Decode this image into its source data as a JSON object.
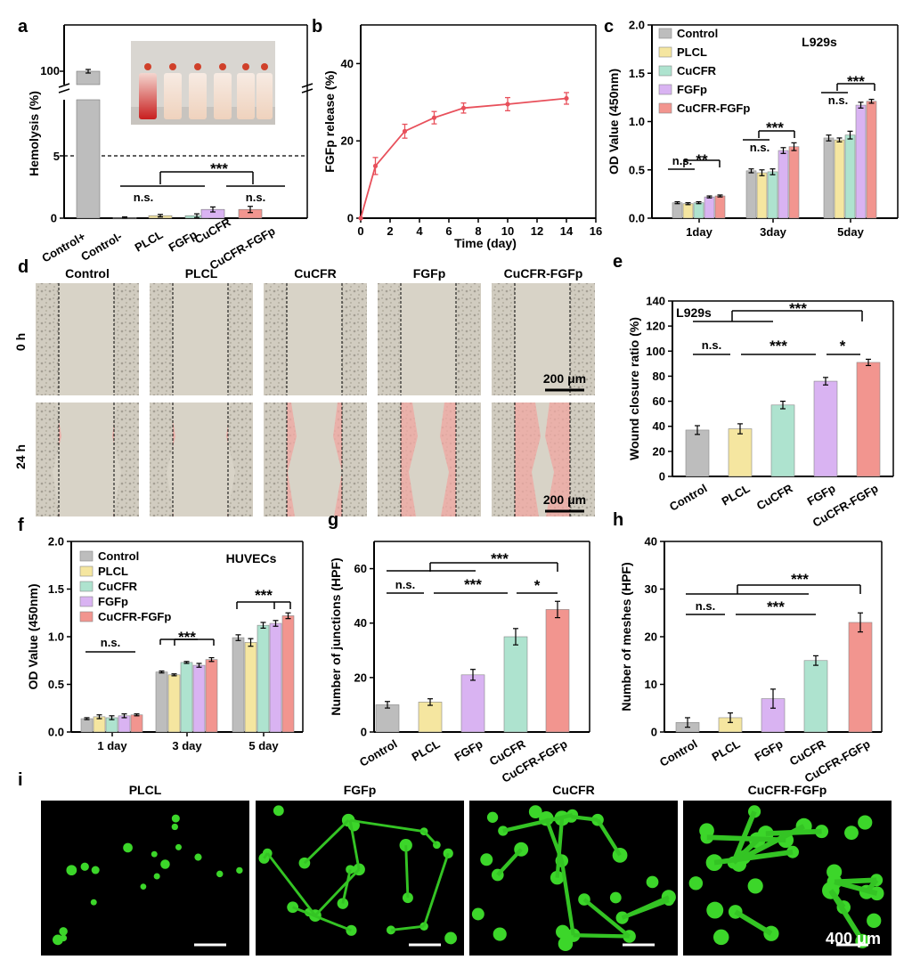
{
  "palette": {
    "Control": "#bdbdbd",
    "PLCL": "#f5e6a0",
    "CuCFR": "#aee3cf",
    "FGFp": "#d9b3f2",
    "CuCFR-FGFp": "#f2958f",
    "Control+": "#bdbdbd",
    "Control-": "#222222"
  },
  "panels": {
    "a": {
      "label": "a",
      "ylabel": "Hemolysis (%)",
      "threshold": 5,
      "threshold_label": "5",
      "top_tick": "100",
      "ns1": "n.s.",
      "ns2": "n.s.",
      "sig": "***"
    },
    "b": {
      "label": "b"
    },
    "c": {
      "label": "c",
      "title": "L929s",
      "sig1": "**",
      "sig2": "***",
      "sig3": "***",
      "ns": "n.s."
    },
    "d": {
      "label": "d",
      "cols": [
        "Control",
        "PLCL",
        "CuCFR",
        "FGFp",
        "CuCFR-FGFp"
      ],
      "rows": [
        "0 h",
        "24 h"
      ],
      "scale": "200 μm"
    },
    "e": {
      "label": "e",
      "title": "L929s",
      "sig_top": "***",
      "ns": "n.s.",
      "sig_mid": "***",
      "sig_right": "*"
    },
    "f": {
      "label": "f",
      "title": "HUVECs",
      "ns": "n.s.",
      "sig1": "***",
      "sig2": "***"
    },
    "g": {
      "label": "g",
      "sig_top": "***",
      "ns": "n.s.",
      "sig_mid": "***",
      "sig_right": "*"
    },
    "h": {
      "label": "h",
      "sig_top": "***",
      "ns": "n.s.",
      "sig_mid": "***"
    },
    "i": {
      "label": "i",
      "cols": [
        "PLCL",
        "FGFp",
        "CuCFR",
        "CuCFR-FGFp"
      ],
      "scale": "400 μm"
    }
  },
  "chart_data": [
    {
      "id": "a",
      "type": "bar",
      "ylabel": "Hemolysis (%)",
      "categories": [
        "Control+",
        "Control-",
        "PLCL",
        "FGFp",
        "CuCFR",
        "CuCFR-FGFp"
      ],
      "values": [
        100,
        0.05,
        0.2,
        0.2,
        0.7,
        0.7
      ],
      "errors": [
        1,
        0.05,
        0.1,
        0.15,
        0.2,
        0.25
      ],
      "yticks": [
        "0",
        "2",
        "5",
        "100"
      ],
      "axis_break": true
    },
    {
      "id": "b",
      "type": "line",
      "xlabel": "Time (day)",
      "ylabel": "FGFp  release (%)",
      "x": [
        0,
        1,
        3,
        5,
        7,
        10,
        14
      ],
      "y": [
        0,
        13.5,
        22.5,
        26,
        28.5,
        29.5,
        31
      ],
      "errors": [
        0,
        2.2,
        1.8,
        1.6,
        1.3,
        1.7,
        1.5
      ],
      "xlim": [
        0,
        16
      ],
      "ylim": [
        0,
        50
      ],
      "xticks": [
        "0",
        "2",
        "4",
        "6",
        "8",
        "10",
        "12",
        "14",
        "16"
      ],
      "yticks": [
        "0",
        "20",
        "40"
      ]
    },
    {
      "id": "c",
      "type": "bar",
      "ylabel": "OD Value (450nm)",
      "ylim": [
        0,
        2.0
      ],
      "yticks": [
        "0.0",
        "0.5",
        "1.0",
        "1.5",
        "2.0"
      ],
      "categories": [
        "1day",
        "3day",
        "5day"
      ],
      "series": [
        {
          "name": "Control",
          "values": [
            0.16,
            0.49,
            0.83
          ],
          "errors": [
            0.01,
            0.02,
            0.03
          ]
        },
        {
          "name": "PLCL",
          "values": [
            0.15,
            0.47,
            0.81
          ],
          "errors": [
            0.01,
            0.03,
            0.02
          ]
        },
        {
          "name": "CuCFR",
          "values": [
            0.16,
            0.48,
            0.86
          ],
          "errors": [
            0.01,
            0.03,
            0.04
          ]
        },
        {
          "name": "FGFp",
          "values": [
            0.22,
            0.7,
            1.17
          ],
          "errors": [
            0.01,
            0.03,
            0.03
          ]
        },
        {
          "name": "CuCFR-FGFp",
          "values": [
            0.23,
            0.74,
            1.21
          ],
          "errors": [
            0.01,
            0.04,
            0.02
          ]
        }
      ]
    },
    {
      "id": "e",
      "type": "bar",
      "ylabel": "Wound closure ratio (%)",
      "ylim": [
        0,
        140
      ],
      "yticks": [
        "0",
        "20",
        "40",
        "60",
        "80",
        "100",
        "120",
        "140"
      ],
      "categories": [
        "Control",
        "PLCL",
        "CuCFR",
        "FGFp",
        "CuCFR-FGFp"
      ],
      "values": [
        37,
        38,
        57,
        76,
        91
      ],
      "errors": [
        3.5,
        4,
        3,
        3,
        2.5
      ]
    },
    {
      "id": "f",
      "type": "bar",
      "ylabel": "OD Value (450nm)",
      "ylim": [
        0,
        2.0
      ],
      "yticks": [
        "0.0",
        "0.5",
        "1.0",
        "1.5",
        "2.0"
      ],
      "categories": [
        "1 day",
        "3 day",
        "5 day"
      ],
      "series": [
        {
          "name": "Control",
          "values": [
            0.14,
            0.63,
            0.99
          ],
          "errors": [
            0.01,
            0.01,
            0.03
          ]
        },
        {
          "name": "PLCL",
          "values": [
            0.16,
            0.6,
            0.94
          ],
          "errors": [
            0.02,
            0.01,
            0.04
          ]
        },
        {
          "name": "CuCFR",
          "values": [
            0.15,
            0.73,
            1.12
          ],
          "errors": [
            0.02,
            0.01,
            0.03
          ]
        },
        {
          "name": "FGFp",
          "values": [
            0.17,
            0.7,
            1.14
          ],
          "errors": [
            0.02,
            0.02,
            0.03
          ]
        },
        {
          "name": "CuCFR-FGFp",
          "values": [
            0.18,
            0.76,
            1.22
          ],
          "errors": [
            0.01,
            0.02,
            0.03
          ]
        }
      ]
    },
    {
      "id": "g",
      "type": "bar",
      "ylabel": "Number of junctions (HPF)",
      "ylim": [
        0,
        70
      ],
      "yticks": [
        "0",
        "20",
        "40",
        "60"
      ],
      "categories": [
        "Control",
        "PLCL",
        "FGFp",
        "CuCFR",
        "CuCFR-FGFp"
      ],
      "values": [
        10,
        11,
        21,
        35,
        45
      ],
      "errors": [
        1.2,
        1.2,
        2,
        3,
        3
      ]
    },
    {
      "id": "h",
      "type": "bar",
      "ylabel": "Number of meshes (HPF)",
      "ylim": [
        0,
        40
      ],
      "yticks": [
        "0",
        "10",
        "20",
        "30",
        "40"
      ],
      "categories": [
        "Control",
        "PLCL",
        "FGFp",
        "CuCFR",
        "CuCFR-FGFp"
      ],
      "values": [
        2,
        3,
        7,
        15,
        23
      ],
      "errors": [
        1,
        1,
        2,
        1,
        2
      ]
    }
  ]
}
